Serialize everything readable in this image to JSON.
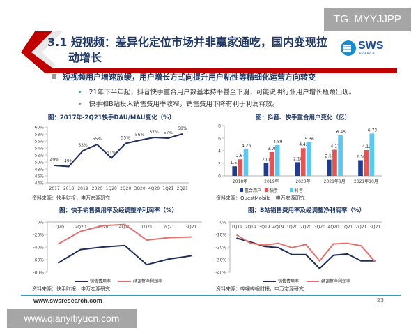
{
  "watermark_top": "TG: MYYJJPP",
  "watermark_bottom": "www.qianyitiyucn.com",
  "title_line1": "3.1 短视频：差异化定位市场并非赢家通吃，国内变现拉",
  "title_line2": "动增长",
  "logo": {
    "text": "SWS",
    "sub": "RESEARCH"
  },
  "heading": "短视频用户增速放缓，用户增长方式向提升用户粘性等精细化运营方向转变",
  "bullets": [
    "21年下半年起，抖音快手重合用户数基本持平甚至下滑，可能说明行业用户增长瓶颈出现。",
    "快手和B站投入销售费用率收窄，销售费用下降有利于利润释放。"
  ],
  "bullet_mark": "•",
  "footer": {
    "url": "www.swsresearch.com",
    "page": "23"
  },
  "colors": {
    "navy": "#1f2d5a",
    "red": "#c00000",
    "teal": "#3a9ab5"
  },
  "chart_data": [
    {
      "type": "line",
      "title": "图：2017年-2Q21快手DAU/MAU变化（%）",
      "source": "资料来源：快手财报，申万宏源研究",
      "categories": [
        "2017",
        "2018",
        "2019",
        "2020",
        "1Q20",
        "2Q20",
        "3Q20",
        "4Q20",
        "1Q21",
        "2Q21"
      ],
      "series": [
        {
          "name": "DAU/MAU",
          "color": "#1f2d5a",
          "values": [
            49,
            48.7,
            53.2,
            55,
            51.1,
            55.3,
            56.2,
            57,
            56.8,
            58
          ],
          "labels": [
            "49%",
            "49%",
            "53%",
            "55%",
            "51%",
            "55%",
            "56%",
            "57%",
            "57%",
            "58%"
          ]
        }
      ],
      "ylim": [
        44,
        60
      ],
      "yticks": [
        "44%",
        "46%",
        "48%",
        "50%",
        "52%",
        "54%",
        "56%",
        "58%",
        "60%"
      ],
      "legend": "none"
    },
    {
      "type": "bar",
      "title": "图：抖音、快手重合用户变化（亿）",
      "source": "资料来源：QuestMobile，申万宏源研究",
      "categories": [
        "2018年",
        "2019年",
        "2020年",
        "2021年8月",
        "2021年10月"
      ],
      "series": [
        {
          "name": "重合用户",
          "color": "#1f3d8c",
          "values": [
            1.53,
            2.08,
            2.18,
            2.59,
            2.5
          ],
          "labels": [
            "1.53",
            "2.08",
            "2.18",
            "2.59",
            "2.50"
          ]
        },
        {
          "name": "快手",
          "color": "#e05555",
          "values": [
            2.64,
            3.79,
            4.42,
            4.17,
            4.12
          ],
          "labels": [
            "2.64",
            "3.79",
            "4.42",
            "4.17",
            "4.12"
          ]
        },
        {
          "name": "抖音",
          "color": "#5bc8ef",
          "values": [
            4.26,
            4.89,
            5.36,
            6.45,
            6.73
          ],
          "labels": [
            "4.26",
            "4.89",
            "5.36",
            "6.45",
            "6.73"
          ]
        }
      ],
      "ylim": [
        0,
        8
      ],
      "yticks": [
        "0",
        "2",
        "4",
        "6",
        "8"
      ],
      "legend": "bottom"
    },
    {
      "type": "line",
      "title": "图：快手销售费用率及经调整净利润率（%）",
      "source": "资料来源：快手财报，申万宏源研究",
      "categories": [
        "1Q20",
        "2Q20",
        "3Q20",
        "4Q20",
        "1Q21",
        "2Q21",
        "3Q21"
      ],
      "series": [
        {
          "name": "销售费用率",
          "color": "#1f2d5a",
          "values": [
            -65,
            -44,
            -40,
            -37.5,
            -68,
            -59,
            -54
          ]
        },
        {
          "name": "经调整净利润率",
          "color": "#e07070",
          "values": [
            -35,
            -15,
            -6,
            -4,
            -29,
            -25,
            -24
          ]
        }
      ],
      "ylim": [
        -80,
        0
      ],
      "yticks": [
        "-80%",
        "-60%",
        "-40%",
        "-20%",
        "0%"
      ],
      "legend": "bottom"
    },
    {
      "type": "line",
      "title": "图：B站销售费用率及经调整净利润率（%）",
      "source": "资料来源：哔哩哔哩财报，申万宏源研究",
      "categories": [
        "1Q19",
        "2Q19",
        "3Q19",
        "4Q19",
        "1Q20",
        "2Q20",
        "3Q20",
        "4Q20",
        "1Q21",
        "2Q21",
        "3Q21"
      ],
      "series": [
        {
          "name": "销售费用率",
          "color": "#1f2d5a",
          "values": [
            -13,
            -16,
            -19.5,
            -20.5,
            -26,
            -26,
            -37,
            -26.5,
            -25.5,
            -31,
            -31
          ]
        },
        {
          "name": "经调整净利润率",
          "color": "#e07070",
          "values": [
            -10.5,
            -17,
            -18.5,
            -17,
            -20.5,
            -18,
            -31,
            -17.5,
            -17,
            -19,
            -31.5
          ]
        }
      ],
      "ylim": [
        -40,
        0
      ],
      "yticks": [
        "-40%",
        "-30%",
        "-20%",
        "-10%",
        "0%"
      ],
      "legend": "bottom"
    }
  ]
}
